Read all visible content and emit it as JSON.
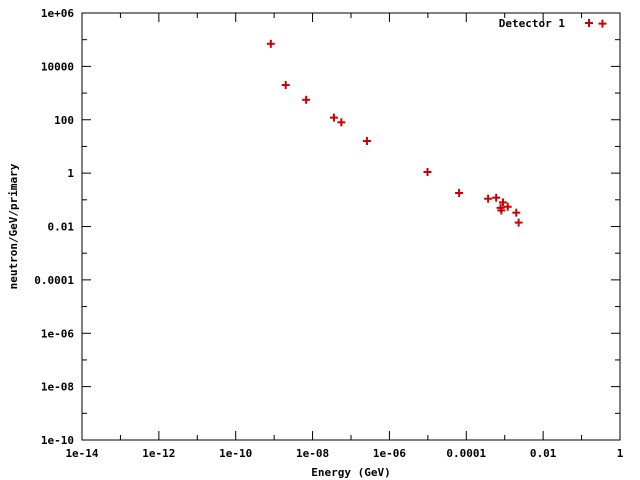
{
  "chart_data": {
    "type": "scatter",
    "xlabel": "Energy (GeV)",
    "ylabel": "neutron/GeV/primary",
    "xscale": "log",
    "yscale": "log",
    "xlim": [
      1e-14,
      1
    ],
    "ylim": [
      1e-10,
      1000000.0
    ],
    "x_ticks": [
      {
        "value": 1e-14,
        "label": "1e-14"
      },
      {
        "value": 1e-12,
        "label": "1e-12"
      },
      {
        "value": 1e-10,
        "label": "1e-10"
      },
      {
        "value": 1e-08,
        "label": "1e-08"
      },
      {
        "value": 1e-06,
        "label": "1e-06"
      },
      {
        "value": 0.0001,
        "label": "0.0001"
      },
      {
        "value": 0.01,
        "label": "0.01"
      },
      {
        "value": 1,
        "label": "1"
      }
    ],
    "y_ticks": [
      {
        "value": 1e-10,
        "label": "1e-10"
      },
      {
        "value": 1e-08,
        "label": "1e-08"
      },
      {
        "value": 1e-06,
        "label": "1e-06"
      },
      {
        "value": 0.0001,
        "label": "0.0001"
      },
      {
        "value": 0.01,
        "label": "0.01"
      },
      {
        "value": 1,
        "label": "1"
      },
      {
        "value": 100,
        "label": "100"
      },
      {
        "value": 10000,
        "label": "10000"
      },
      {
        "value": 1000000.0,
        "label": "1e+06"
      }
    ],
    "grid": false,
    "legend_position": "top-right",
    "series": [
      {
        "name": "Detector 1",
        "marker": "plus",
        "color": "#cc0000",
        "points": [
          {
            "x": 8.2e-10,
            "y": 70000
          },
          {
            "x": 2e-09,
            "y": 2000
          },
          {
            "x": 6.8e-09,
            "y": 560
          },
          {
            "x": 3.6e-08,
            "y": 120
          },
          {
            "x": 5.6e-08,
            "y": 80
          },
          {
            "x": 2.6e-07,
            "y": 16
          },
          {
            "x": 9.8e-06,
            "y": 1.1
          },
          {
            "x": 6.5e-05,
            "y": 0.18
          },
          {
            "x": 0.00037,
            "y": 0.11
          },
          {
            "x": 0.0006,
            "y": 0.12
          },
          {
            "x": 0.00078,
            "y": 0.05
          },
          {
            "x": 0.00082,
            "y": 0.04
          },
          {
            "x": 0.0009,
            "y": 0.08
          },
          {
            "x": 0.0012,
            "y": 0.055
          },
          {
            "x": 0.002,
            "y": 0.033
          },
          {
            "x": 0.0023,
            "y": 0.014
          },
          {
            "x": 0.35,
            "y": 400000
          }
        ]
      }
    ]
  }
}
